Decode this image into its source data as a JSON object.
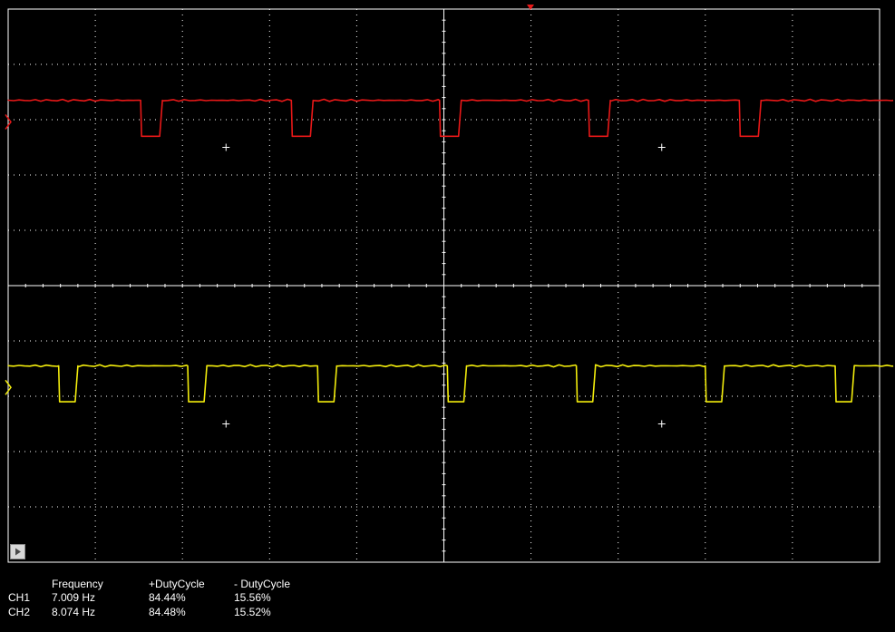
{
  "colors": {
    "background": "#000000",
    "grid": "#ffffff",
    "ch1": "#e81818",
    "ch2": "#f2ec0c"
  },
  "display": {
    "divisions_x": 10,
    "divisions_y": 10,
    "subdivisions": 5
  },
  "channels": [
    {
      "id": "CH1",
      "color": "#e81818",
      "high_div": 8.35,
      "low_div": 7.7,
      "pulses": [
        {
          "start_div": 1.52,
          "width_div": 0.25
        },
        {
          "start_div": 3.25,
          "width_div": 0.25
        },
        {
          "start_div": 4.95,
          "width_div": 0.25
        },
        {
          "start_div": 6.66,
          "width_div": 0.25
        },
        {
          "start_div": 8.39,
          "width_div": 0.25
        }
      ]
    },
    {
      "id": "CH2",
      "color": "#f2ec0c",
      "high_div": 3.55,
      "low_div": 2.9,
      "pulses": [
        {
          "start_div": 0.58,
          "width_div": 0.22
        },
        {
          "start_div": 2.06,
          "width_div": 0.22
        },
        {
          "start_div": 3.55,
          "width_div": 0.22
        },
        {
          "start_div": 5.04,
          "width_div": 0.22
        },
        {
          "start_div": 6.52,
          "width_div": 0.22
        },
        {
          "start_div": 8.0,
          "width_div": 0.22
        },
        {
          "start_div": 9.49,
          "width_div": 0.22
        }
      ]
    }
  ],
  "measurements": {
    "headers": {
      "frequency": "Frequency",
      "pos_duty": "+DutyCycle",
      "neg_duty": "- DutyCycle"
    },
    "rows": [
      {
        "channel": "CH1",
        "frequency": "7.009 Hz",
        "pos_duty": "84.44%",
        "neg_duty": "15.56%"
      },
      {
        "channel": "CH2",
        "frequency": "8.074 Hz",
        "pos_duty": "84.48%",
        "neg_duty": "15.52%"
      }
    ]
  }
}
